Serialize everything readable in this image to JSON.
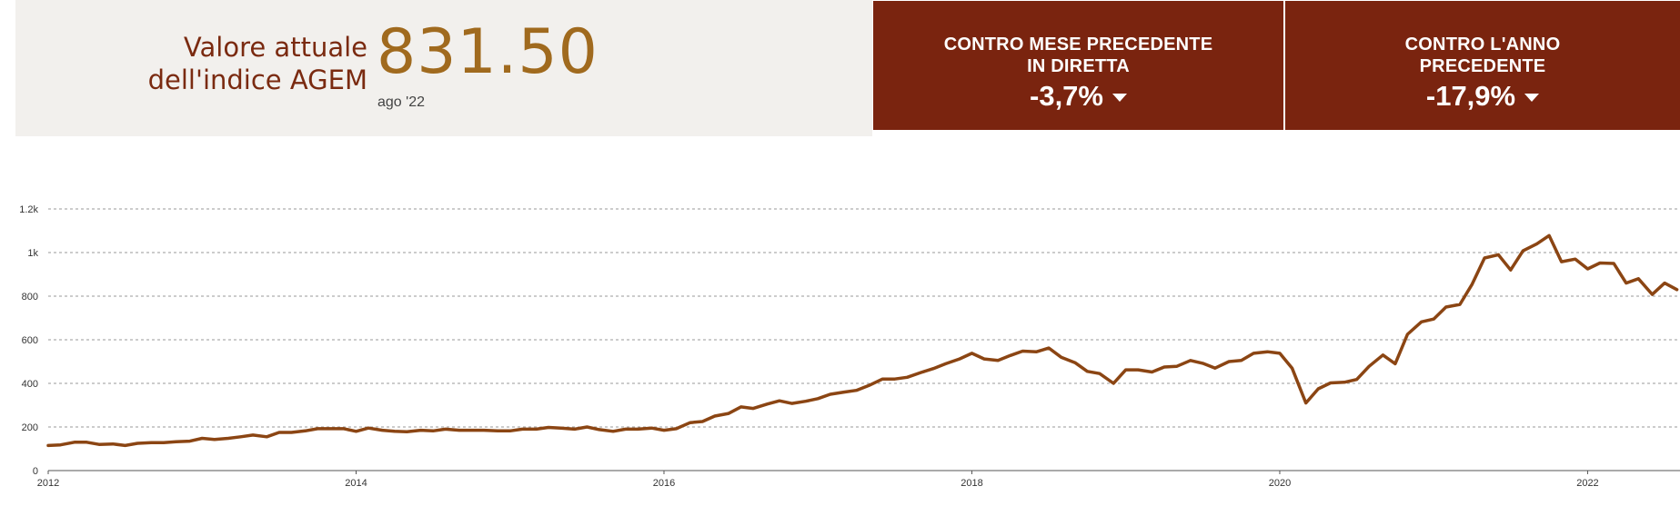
{
  "summary": {
    "title": "Valore attuale dell'indice AGEM",
    "value": "831.50",
    "date": "ago '22"
  },
  "kpis": {
    "month": {
      "label": "CONTRO MESE PRECEDENTE IN DIRETTA",
      "value": "-3,7%",
      "trend_icon": "triangle-down-icon"
    },
    "year": {
      "label": "CONTRO L'ANNO PRECEDENTE",
      "value": "-17,9%",
      "trend_icon": "triangle-down-icon"
    }
  },
  "colors": {
    "accent_dark": "#7a240f",
    "line": "#8b4513",
    "value_gold": "#a06a1e",
    "panel_bg": "#f2f0ed"
  },
  "chart_data": {
    "type": "line",
    "title": "",
    "xlabel": "",
    "ylabel": "",
    "xlim": [
      2012,
      2022.6
    ],
    "ylim": [
      0,
      1200
    ],
    "x_ticks": [
      2012,
      2014,
      2016,
      2018,
      2020,
      2022
    ],
    "x_tick_labels": [
      "2012",
      "2014",
      "2016",
      "2018",
      "2020",
      "2022"
    ],
    "y_ticks": [
      0,
      200,
      400,
      600,
      800,
      1000,
      1200
    ],
    "y_tick_labels": [
      "0",
      "200",
      "400",
      "600",
      "800",
      "1k",
      "1.2k"
    ],
    "grid": "horizontal-dashed",
    "series": [
      {
        "name": "",
        "x": [
          2012.0,
          2012.08,
          2012.17,
          2012.25,
          2012.33,
          2012.42,
          2012.5,
          2012.58,
          2012.67,
          2012.75,
          2012.83,
          2012.92,
          2013.0,
          2013.08,
          2013.17,
          2013.25,
          2013.33,
          2013.42,
          2013.5,
          2013.58,
          2013.67,
          2013.75,
          2013.83,
          2013.92,
          2014.0,
          2014.08,
          2014.17,
          2014.25,
          2014.33,
          2014.42,
          2014.5,
          2014.58,
          2014.67,
          2014.75,
          2014.83,
          2014.92,
          2015.0,
          2015.08,
          2015.17,
          2015.25,
          2015.33,
          2015.42,
          2015.5,
          2015.58,
          2015.67,
          2015.75,
          2015.83,
          2015.92,
          2016.0,
          2016.08,
          2016.17,
          2016.25,
          2016.33,
          2016.42,
          2016.5,
          2016.58,
          2016.67,
          2016.75,
          2016.83,
          2016.92,
          2017.0,
          2017.08,
          2017.17,
          2017.25,
          2017.33,
          2017.42,
          2017.5,
          2017.58,
          2017.67,
          2017.75,
          2017.83,
          2017.92,
          2018.0,
          2018.08,
          2018.17,
          2018.25,
          2018.33,
          2018.42,
          2018.5,
          2018.58,
          2018.67,
          2018.75,
          2018.83,
          2018.92,
          2019.0,
          2019.08,
          2019.17,
          2019.25,
          2019.33,
          2019.42,
          2019.5,
          2019.58,
          2019.67,
          2019.75,
          2019.83,
          2019.92,
          2020.0,
          2020.08,
          2020.17,
          2020.25,
          2020.33,
          2020.42,
          2020.5,
          2020.58,
          2020.67,
          2020.75,
          2020.83,
          2020.92,
          2021.0,
          2021.08,
          2021.17,
          2021.25,
          2021.33,
          2021.42,
          2021.5,
          2021.58,
          2021.67,
          2021.75,
          2021.83,
          2021.92,
          2022.0,
          2022.08,
          2022.17,
          2022.25,
          2022.33,
          2022.42,
          2022.5,
          2022.58
        ],
        "values": [
          115,
          118,
          130,
          130,
          120,
          122,
          115,
          125,
          128,
          128,
          132,
          135,
          148,
          143,
          148,
          155,
          163,
          155,
          175,
          175,
          182,
          192,
          192,
          192,
          180,
          195,
          185,
          180,
          178,
          185,
          182,
          190,
          185,
          185,
          185,
          182,
          182,
          190,
          190,
          198,
          195,
          190,
          200,
          188,
          180,
          190,
          190,
          195,
          185,
          192,
          220,
          225,
          250,
          262,
          292,
          285,
          305,
          320,
          308,
          318,
          330,
          350,
          360,
          368,
          390,
          420,
          420,
          428,
          450,
          468,
          490,
          512,
          538,
          512,
          505,
          528,
          548,
          545,
          562,
          520,
          495,
          455,
          445,
          400,
          462,
          462,
          452,
          475,
          478,
          505,
          492,
          470,
          500,
          505,
          538,
          545,
          538,
          470,
          310,
          375,
          402,
          405,
          418,
          478,
          530,
          490,
          625,
          682,
          695,
          750,
          762,
          855,
          975,
          990,
          920,
          1008,
          1040,
          1078,
          958,
          970,
          925,
          952,
          950,
          860,
          880,
          808,
          860,
          830
        ]
      }
    ]
  }
}
